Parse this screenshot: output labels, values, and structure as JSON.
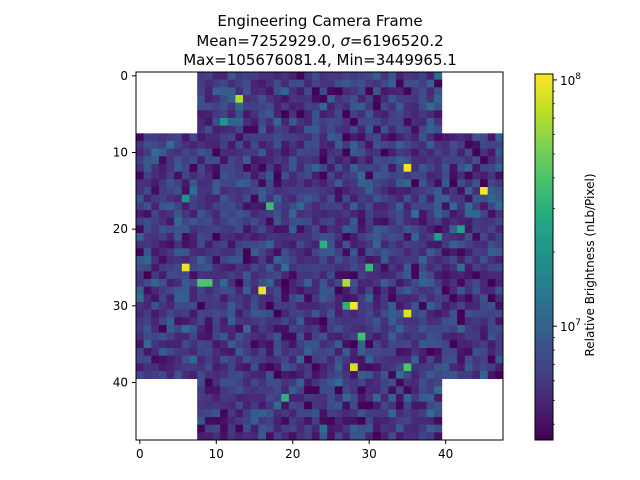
{
  "chart_data": {
    "type": "heatmap",
    "title": "Engineering Camera Frame",
    "subtitle_mean": "Mean=7252929.0, ",
    "subtitle_sigma": "σ",
    "subtitle_sigma_value": "=6196520.2",
    "subtitle_max_min": "Max=105676081.4, Min=3449965.1",
    "grid_shape": [
      48,
      48
    ],
    "xlim": [
      -0.5,
      47.5
    ],
    "ylim": [
      47.5,
      -0.5
    ],
    "x_ticks": [
      0,
      10,
      20,
      30,
      40
    ],
    "y_ticks": [
      0,
      10,
      20,
      30,
      40
    ],
    "x_tick_labels": [
      "0",
      "10",
      "20",
      "30",
      "40"
    ],
    "y_tick_labels": [
      "0",
      "10",
      "20",
      "30",
      "40"
    ],
    "grid": false,
    "colormap": "viridis",
    "color_scale": "log",
    "value_range": [
      3449965.1,
      105676081.4
    ],
    "masked_regions": [
      {
        "rows": [
          0,
          7
        ],
        "cols": [
          0,
          7
        ]
      },
      {
        "rows": [
          0,
          7
        ],
        "cols": [
          40,
          47
        ]
      },
      {
        "rows": [
          40,
          47
        ],
        "cols": [
          0,
          7
        ]
      },
      {
        "rows": [
          40,
          47
        ],
        "cols": [
          40,
          47
        ]
      }
    ],
    "background_level": 6000000,
    "bright_pixels": [
      {
        "row": 3,
        "col": 13,
        "value": 70000000
      },
      {
        "row": 12,
        "col": 35,
        "value": 100000000
      },
      {
        "row": 15,
        "col": 45,
        "value": 100000000
      },
      {
        "row": 25,
        "col": 6,
        "value": 95000000
      },
      {
        "row": 28,
        "col": 16,
        "value": 95000000
      },
      {
        "row": 30,
        "col": 28,
        "value": 100000000
      },
      {
        "row": 31,
        "col": 35,
        "value": 90000000
      },
      {
        "row": 38,
        "col": 28,
        "value": 85000000
      },
      {
        "row": 27,
        "col": 27,
        "value": 70000000
      },
      {
        "row": 27,
        "col": 8,
        "value": 40000000
      },
      {
        "row": 27,
        "col": 9,
        "value": 40000000
      },
      {
        "row": 17,
        "col": 17,
        "value": 35000000
      },
      {
        "row": 38,
        "col": 35,
        "value": 40000000
      },
      {
        "row": 34,
        "col": 29,
        "value": 38000000
      },
      {
        "row": 30,
        "col": 27,
        "value": 30000000
      },
      {
        "row": 22,
        "col": 24,
        "value": 30000000
      },
      {
        "row": 25,
        "col": 30,
        "value": 35000000
      },
      {
        "row": 42,
        "col": 19,
        "value": 30000000
      },
      {
        "row": 20,
        "col": 42,
        "value": 25000000
      },
      {
        "row": 21,
        "col": 39,
        "value": 22000000
      },
      {
        "row": 16,
        "col": 6,
        "value": 20000000
      },
      {
        "row": 6,
        "col": 11,
        "value": 20000000
      }
    ],
    "colorbar": {
      "label": "Relative Brightness (nLb/Pixel)",
      "ticks": [
        {
          "value": 10000000,
          "base": "10",
          "exponent": "7"
        },
        {
          "value": 100000000,
          "base": "10",
          "exponent": "8"
        }
      ]
    }
  }
}
